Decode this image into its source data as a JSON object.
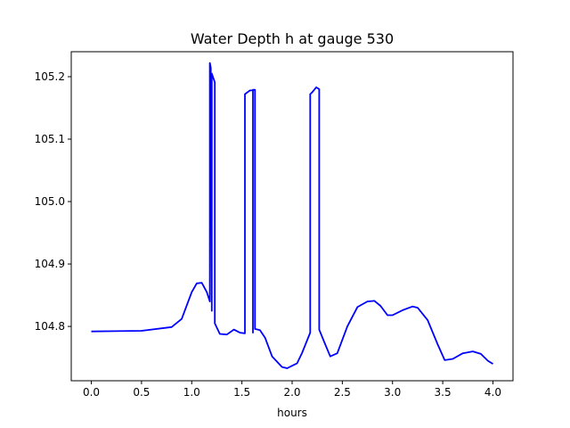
{
  "chart_data": {
    "type": "line",
    "title": "Water Depth h at gauge 530",
    "xlabel": "hours",
    "ylabel": "",
    "xlim": [
      -0.2,
      4.2
    ],
    "ylim": [
      104.713,
      105.24
    ],
    "xticks": [
      0.0,
      0.5,
      1.0,
      1.5,
      2.0,
      2.5,
      3.0,
      3.5,
      4.0
    ],
    "xtick_labels": [
      "0.0",
      "0.5",
      "1.0",
      "1.5",
      "2.0",
      "2.5",
      "3.0",
      "3.5",
      "4.0"
    ],
    "yticks": [
      104.8,
      104.9,
      105.0,
      105.1,
      105.2
    ],
    "ytick_labels": [
      "104.8",
      "104.9",
      "105.0",
      "105.1",
      "105.2"
    ],
    "grid": false,
    "legend": "none",
    "series": [
      {
        "color": "#0000ff",
        "points": [
          [
            0.0,
            104.792
          ],
          [
            0.5,
            104.793
          ],
          [
            0.8,
            104.799
          ],
          [
            0.9,
            104.812
          ],
          [
            1.0,
            104.855
          ],
          [
            1.05,
            104.869
          ],
          [
            1.1,
            104.87
          ],
          [
            1.15,
            104.855
          ],
          [
            1.18,
            104.84
          ],
          [
            1.18,
            105.222
          ],
          [
            1.19,
            105.214
          ],
          [
            1.2,
            104.825
          ],
          [
            1.2,
            105.205
          ],
          [
            1.23,
            105.191
          ],
          [
            1.23,
            104.805
          ],
          [
            1.28,
            104.788
          ],
          [
            1.35,
            104.787
          ],
          [
            1.42,
            104.795
          ],
          [
            1.48,
            104.79
          ],
          [
            1.53,
            104.789
          ],
          [
            1.53,
            105.172
          ],
          [
            1.58,
            105.178
          ],
          [
            1.61,
            105.178
          ],
          [
            1.61,
            104.79
          ],
          [
            1.61,
            105.179
          ],
          [
            1.63,
            105.179
          ],
          [
            1.63,
            104.796
          ],
          [
            1.68,
            104.794
          ],
          [
            1.73,
            104.782
          ],
          [
            1.8,
            104.752
          ],
          [
            1.9,
            104.735
          ],
          [
            1.95,
            104.733
          ],
          [
            2.0,
            104.737
          ],
          [
            2.05,
            104.741
          ],
          [
            2.1,
            104.758
          ],
          [
            2.15,
            104.778
          ],
          [
            2.18,
            104.79
          ],
          [
            2.18,
            105.172
          ],
          [
            2.2,
            105.175
          ],
          [
            2.24,
            105.183
          ],
          [
            2.27,
            105.18
          ],
          [
            2.27,
            104.795
          ],
          [
            2.32,
            104.775
          ],
          [
            2.38,
            104.752
          ],
          [
            2.45,
            104.757
          ],
          [
            2.55,
            104.8
          ],
          [
            2.65,
            104.831
          ],
          [
            2.75,
            104.84
          ],
          [
            2.82,
            104.841
          ],
          [
            2.88,
            104.833
          ],
          [
            2.95,
            104.818
          ],
          [
            3.0,
            104.818
          ],
          [
            3.1,
            104.826
          ],
          [
            3.2,
            104.832
          ],
          [
            3.25,
            104.83
          ],
          [
            3.35,
            104.81
          ],
          [
            3.45,
            104.771
          ],
          [
            3.52,
            104.746
          ],
          [
            3.6,
            104.748
          ],
          [
            3.7,
            104.757
          ],
          [
            3.8,
            104.76
          ],
          [
            3.88,
            104.756
          ],
          [
            3.95,
            104.745
          ],
          [
            4.0,
            104.74
          ]
        ]
      }
    ]
  }
}
